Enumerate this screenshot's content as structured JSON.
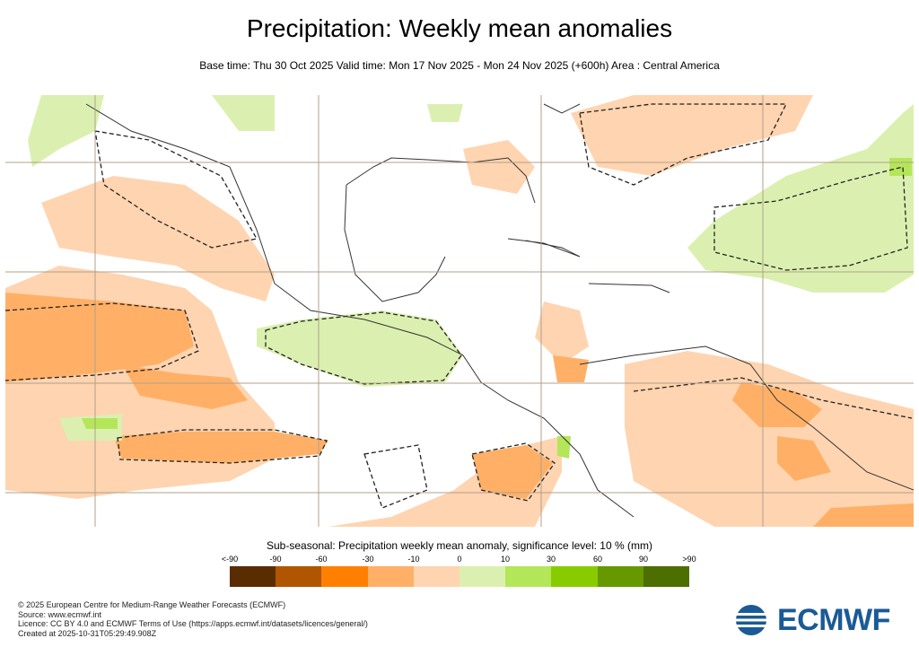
{
  "title": "Precipitation: Weekly mean anomalies",
  "subtitle": "Base time: Thu 30 Oct 2025 Valid time: Mon 17 Nov 2025 - Mon 24 Nov 2025 (+600h) Area : Central America",
  "legend": {
    "title": "Sub-seasonal: Precipitation weekly mean anomaly, significance level: 10 % (mm)",
    "labels": [
      "<-90",
      "-90",
      "-60",
      "-30",
      "-10",
      "0",
      "10",
      "30",
      "60",
      "90",
      ">90"
    ],
    "colors": [
      "#5a2d00",
      "#b05600",
      "#ff8000",
      "#ffb066",
      "#ffd4b0",
      "#dbf0b0",
      "#b4e65a",
      "#88cc00",
      "#669900",
      "#4d6e00"
    ]
  },
  "map_colors": {
    "dry_light": "#ffd4b0",
    "dry_mid": "#ffb066",
    "dry_strong": "#ff8000",
    "wet_light": "#dbf0b0",
    "wet_mid": "#b4e65a",
    "gridline": "#b0a08a",
    "coast": "#333333"
  },
  "footer": {
    "line1": "© 2025 European Centre for Medium-Range Weather Forecasts (ECMWF)",
    "line2": "Source: www.ecmwf.int",
    "line3": "Licence: CC BY 4.0 and ECMWF Terms of Use (https://apps.ecmwf.int/datasets/licences/general/)",
    "line4": "Created at 2025-10-31T05:29:49.908Z"
  },
  "logo": {
    "text": "ECMWF"
  }
}
